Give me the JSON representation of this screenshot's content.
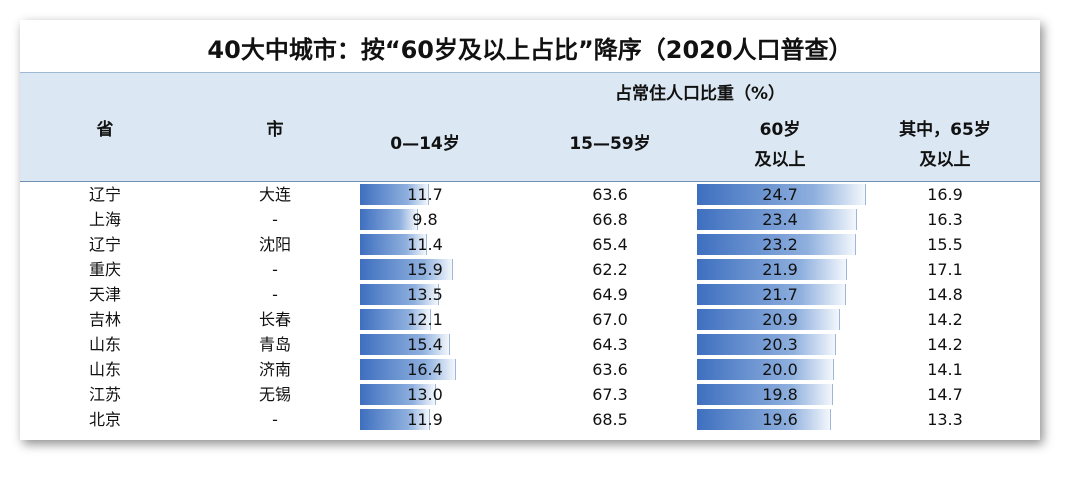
{
  "title": "40大中城市：按“60岁及以上占比”降序（2020人口普查）",
  "header": {
    "group": "占常住人口比重（%）",
    "columns": [
      [
        "省"
      ],
      [
        "市"
      ],
      [
        "0—14岁"
      ],
      [
        "15—59岁"
      ],
      [
        "60岁",
        "及以上"
      ],
      [
        "其中，65岁",
        "及以上"
      ]
    ]
  },
  "table": {
    "rows": [
      [
        "辽宁",
        "大连",
        "11.7",
        "63.6",
        "24.7",
        "16.9"
      ],
      [
        "上海",
        "-",
        "9.8",
        "66.8",
        "23.4",
        "16.3"
      ],
      [
        "辽宁",
        "沈阳",
        "11.4",
        "65.4",
        "23.2",
        "15.5"
      ],
      [
        "重庆",
        "-",
        "15.9",
        "62.2",
        "21.9",
        "17.1"
      ],
      [
        "天津",
        "-",
        "13.5",
        "64.9",
        "21.7",
        "14.8"
      ],
      [
        "吉林",
        "长春",
        "12.1",
        "67.0",
        "20.9",
        "14.2"
      ],
      [
        "山东",
        "青岛",
        "15.4",
        "64.3",
        "20.3",
        "14.2"
      ],
      [
        "山东",
        "济南",
        "16.4",
        "63.6",
        "20.0",
        "14.1"
      ],
      [
        "江苏",
        "无锡",
        "13.0",
        "67.3",
        "19.8",
        "14.7"
      ],
      [
        "北京",
        "-",
        "11.9",
        "68.5",
        "19.6",
        "13.3"
      ]
    ]
  }
}
